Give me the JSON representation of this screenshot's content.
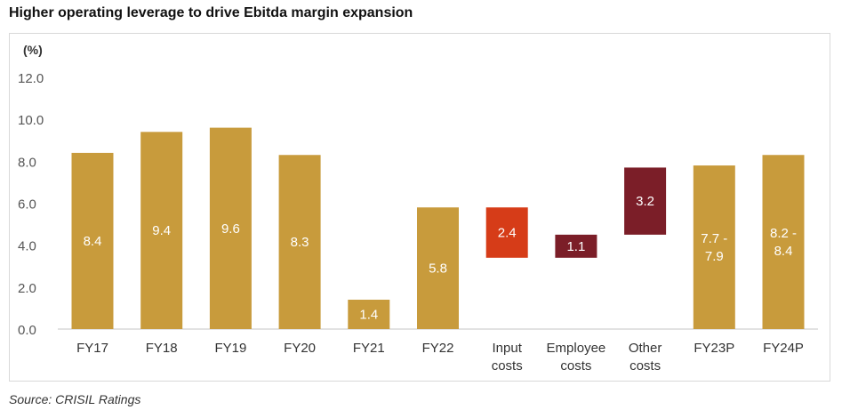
{
  "title": "Higher operating leverage to drive Ebitda margin expansion",
  "source": "Source: CRISIL Ratings",
  "chart_data": {
    "type": "bar",
    "subtype": "waterfall",
    "title": "Higher operating leverage to drive Ebitda margin expansion",
    "ylabel": "(%)",
    "ylim": [
      0,
      12
    ],
    "yticks": [
      "0.0",
      "2.0",
      "4.0",
      "6.0",
      "8.0",
      "10.0",
      "12.0"
    ],
    "grid": false,
    "legend": "none",
    "categories": [
      "FY17",
      "FY18",
      "FY19",
      "FY20",
      "FY21",
      "FY22",
      "Input costs",
      "Employee costs",
      "Other costs",
      "FY23P",
      "FY24P"
    ],
    "bars": [
      {
        "category": "FY17",
        "low": 0,
        "high": 8.4,
        "label": "8.4",
        "kind": "total"
      },
      {
        "category": "FY18",
        "low": 0,
        "high": 9.4,
        "label": "9.4",
        "kind": "total"
      },
      {
        "category": "FY19",
        "low": 0,
        "high": 9.6,
        "label": "9.6",
        "kind": "total"
      },
      {
        "category": "FY20",
        "low": 0,
        "high": 8.3,
        "label": "8.3",
        "kind": "total"
      },
      {
        "category": "FY21",
        "low": 0,
        "high": 1.4,
        "label": "1.4",
        "kind": "total"
      },
      {
        "category": "FY22",
        "low": 0,
        "high": 5.8,
        "label": "5.8",
        "kind": "total"
      },
      {
        "category": "Input costs",
        "low": 3.4,
        "high": 5.8,
        "label": "2.4",
        "kind": "decrease"
      },
      {
        "category": "Employee costs",
        "low": 3.4,
        "high": 4.5,
        "label": "1.1",
        "kind": "increase"
      },
      {
        "category": "Other costs",
        "low": 4.5,
        "high": 7.7,
        "label": "3.2",
        "kind": "increase"
      },
      {
        "category": "FY23P",
        "low": 0,
        "high": 7.8,
        "label": "7.7 - 7.9",
        "kind": "total"
      },
      {
        "category": "FY24P",
        "low": 0,
        "high": 8.3,
        "label": "8.2 - 8.4",
        "kind": "total"
      }
    ],
    "colors": {
      "total": "#c89b3c",
      "decrease": "#d63c18",
      "increase": "#7b1e28"
    }
  }
}
